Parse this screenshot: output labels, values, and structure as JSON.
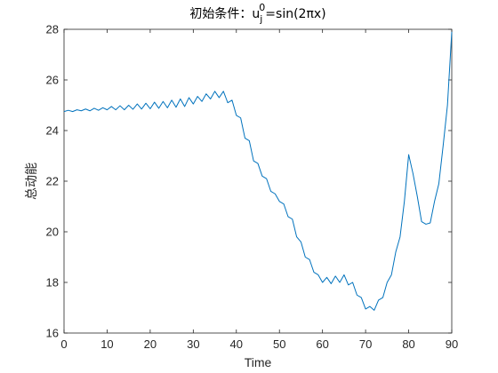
{
  "chart_data": {
    "type": "line",
    "title_prefix": "初始条件：u",
    "title_subscript": "j",
    "title_superscript": "0",
    "title_suffix": "=sin(2πx)",
    "xlabel": "Time",
    "ylabel": "总动能",
    "xlim": [
      0,
      90
    ],
    "ylim": [
      16,
      28
    ],
    "xticks": [
      0,
      10,
      20,
      30,
      40,
      50,
      60,
      70,
      80,
      90
    ],
    "yticks": [
      16,
      18,
      20,
      22,
      24,
      26,
      28
    ],
    "grid": false,
    "line_color": "#0072BD",
    "series": [
      {
        "x": [
          0,
          1,
          2,
          3,
          4,
          5,
          6,
          7,
          8,
          9,
          10,
          11,
          12,
          13,
          14,
          15,
          16,
          17,
          18,
          19,
          20,
          21,
          22,
          23,
          24,
          25,
          26,
          27,
          28,
          29,
          30,
          31,
          32,
          33,
          34,
          35,
          36,
          37,
          38,
          39,
          40,
          41,
          42,
          43,
          44,
          45,
          46,
          47,
          48,
          49,
          50,
          51,
          52,
          53,
          54,
          55,
          56,
          57,
          58,
          59,
          60,
          61,
          62,
          63,
          64,
          65,
          66,
          67,
          68,
          69,
          70,
          71,
          72,
          73,
          74,
          75,
          76,
          77,
          78,
          79,
          80,
          81,
          82,
          83,
          84,
          85,
          86,
          87,
          88,
          89,
          90
        ],
        "y": [
          24.75,
          24.8,
          24.75,
          24.82,
          24.78,
          24.85,
          24.78,
          24.88,
          24.8,
          24.9,
          24.82,
          24.95,
          24.82,
          24.98,
          24.82,
          25.0,
          24.84,
          25.05,
          24.85,
          25.08,
          24.86,
          25.12,
          24.88,
          25.15,
          24.9,
          25.2,
          24.92,
          25.25,
          24.95,
          25.3,
          25.05,
          25.35,
          25.15,
          25.45,
          25.25,
          25.55,
          25.3,
          25.55,
          25.1,
          25.2,
          24.6,
          24.5,
          23.7,
          23.6,
          22.8,
          22.7,
          22.2,
          22.1,
          21.6,
          21.5,
          21.2,
          21.1,
          20.6,
          20.5,
          19.8,
          19.6,
          19.0,
          18.9,
          18.4,
          18.3,
          18.0,
          18.2,
          17.95,
          18.25,
          18.0,
          18.3,
          17.9,
          18.0,
          17.5,
          17.4,
          16.95,
          17.05,
          16.9,
          17.3,
          17.4,
          18.0,
          18.3,
          19.2,
          19.8,
          21.2,
          23.05,
          22.3,
          21.4,
          20.4,
          20.3,
          20.35,
          21.2,
          21.9,
          23.4,
          25.0,
          27.9
        ]
      }
    ]
  }
}
